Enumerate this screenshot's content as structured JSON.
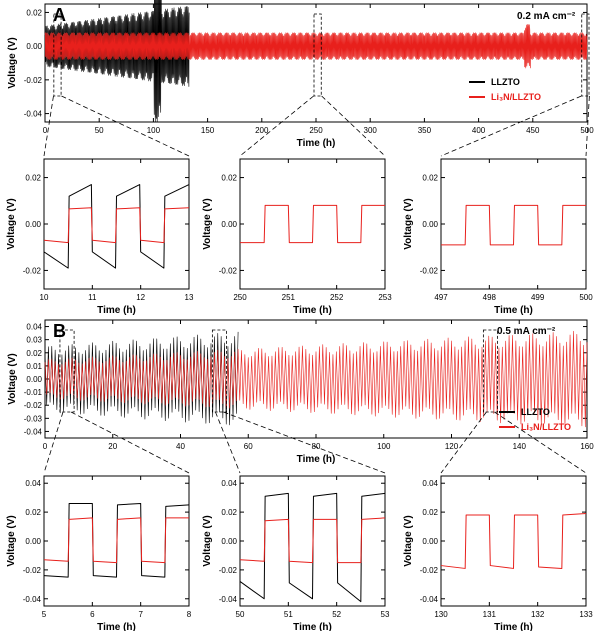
{
  "chart_data": [
    {
      "id": "A-main",
      "type": "line",
      "panel_label": "A",
      "condition": "0.2 mA cm⁻²",
      "xlabel": "Time (h)",
      "ylabel": "Voltage (V)",
      "xlim": [
        0,
        500
      ],
      "ylim": [
        -0.045,
        0.025
      ],
      "xticks": [
        0,
        50,
        100,
        150,
        200,
        250,
        300,
        350,
        400,
        450,
        500
      ],
      "yticks": [
        -0.04,
        -0.02,
        0.0,
        0.02
      ],
      "ytick_labels": [
        "-0.04",
        "-0.02",
        "0.00",
        "0.02"
      ],
      "legend": [
        "LLZTO",
        "Li₃N/LLZTO"
      ],
      "legend_position": "right",
      "zoom_windows": [
        [
          10,
          13
        ],
        [
          250,
          253
        ],
        [
          497,
          500
        ]
      ],
      "series": [
        {
          "name": "LLZTO",
          "color": "#000000",
          "x_range": [
            0,
            133
          ],
          "amplitude_start": 0.012,
          "amplitude_end": 0.024,
          "failure_spike_x": 104,
          "failure_spike_amplitude": 0.045
        },
        {
          "name": "Li₃N/LLZTO",
          "color": "#e8201c",
          "x_range": [
            0,
            500
          ],
          "amplitude_start": 0.008,
          "amplitude_end": 0.008,
          "bump_x": 445,
          "bump_amplitude": 0.013
        }
      ]
    },
    {
      "id": "A-zoom-1",
      "type": "line",
      "xlabel": "Time (h)",
      "ylabel": "Voltage (V)",
      "xlim": [
        10,
        13
      ],
      "ylim": [
        -0.028,
        0.028
      ],
      "xticks": [
        10,
        11,
        12,
        13
      ],
      "yticks": [
        -0.02,
        0.0,
        0.02
      ],
      "ytick_labels": [
        "-0.02",
        "0.00",
        "0.02"
      ],
      "series": [
        {
          "name": "LLZTO",
          "color": "#000000",
          "x": [
            10,
            10.5,
            10.52,
            10.98,
            11.0,
            11.48,
            11.5,
            11.98,
            12.0,
            12.48,
            12.5,
            13
          ],
          "y": [
            -0.012,
            -0.019,
            0.012,
            0.017,
            -0.012,
            -0.019,
            0.012,
            0.017,
            -0.012,
            -0.019,
            0.012,
            0.017
          ]
        },
        {
          "name": "Li₃N/LLZTO",
          "color": "#e8201c",
          "x": [
            10,
            10.5,
            10.52,
            10.98,
            11.0,
            11.48,
            11.5,
            11.98,
            12.0,
            12.48,
            12.5,
            13
          ],
          "y": [
            -0.007,
            -0.008,
            0.0065,
            0.007,
            -0.007,
            -0.008,
            0.0065,
            0.007,
            -0.007,
            -0.008,
            0.0065,
            0.007
          ]
        }
      ]
    },
    {
      "id": "A-zoom-2",
      "type": "line",
      "xlabel": "Time (h)",
      "ylabel": "Voltage (V)",
      "xlim": [
        250,
        253
      ],
      "ylim": [
        -0.028,
        0.028
      ],
      "xticks": [
        250,
        251,
        252,
        253
      ],
      "yticks": [
        -0.02,
        0.0,
        0.02
      ],
      "ytick_labels": [
        "-0.02",
        "0.00",
        "0.02"
      ],
      "series": [
        {
          "name": "Li₃N/LLZTO",
          "color": "#e8201c",
          "x": [
            250,
            250.5,
            250.52,
            251.0,
            251.02,
            251.5,
            251.52,
            252.0,
            252.02,
            252.5,
            252.52,
            253
          ],
          "y": [
            -0.008,
            -0.008,
            0.008,
            0.008,
            -0.008,
            -0.008,
            0.008,
            0.008,
            -0.008,
            -0.008,
            0.008,
            0.008
          ]
        }
      ]
    },
    {
      "id": "A-zoom-3",
      "type": "line",
      "xlabel": "Time (h)",
      "ylabel": "Voltage (V)",
      "xlim": [
        497,
        500
      ],
      "ylim": [
        -0.028,
        0.028
      ],
      "xticks": [
        497,
        498,
        499,
        500
      ],
      "yticks": [
        -0.02,
        0.0,
        0.02
      ],
      "ytick_labels": [
        "-0.02",
        "0.00",
        "0.02"
      ],
      "series": [
        {
          "name": "Li₃N/LLZTO",
          "color": "#e8201c",
          "x": [
            497,
            497.5,
            497.52,
            498.0,
            498.02,
            498.5,
            498.52,
            499.0,
            499.02,
            499.5,
            499.52,
            500
          ],
          "y": [
            -0.009,
            -0.009,
            0.008,
            0.008,
            -0.009,
            -0.009,
            0.008,
            0.008,
            -0.009,
            -0.009,
            0.008,
            0.008
          ]
        }
      ]
    },
    {
      "id": "B-main",
      "type": "line",
      "panel_label": "B",
      "condition": "0.5 mA cm⁻²",
      "xlabel": "Time (h)",
      "ylabel": "Voltage (V)",
      "xlim": [
        0,
        160
      ],
      "ylim": [
        -0.045,
        0.045
      ],
      "xticks": [
        0,
        20,
        40,
        60,
        80,
        100,
        120,
        140,
        160
      ],
      "yticks": [
        -0.04,
        -0.03,
        -0.02,
        -0.01,
        0.0,
        0.01,
        0.02,
        0.03,
        0.04
      ],
      "ytick_labels": [
        "-0.04",
        "-0.03",
        "-0.02",
        "-0.01",
        "0.00",
        "0.01",
        "0.02",
        "0.03",
        "0.04"
      ],
      "legend": [
        "LLZTO",
        "Li₃N/LLZTO"
      ],
      "legend_position": "right",
      "zoom_windows": [
        [
          5,
          8
        ],
        [
          50,
          53
        ],
        [
          130,
          133
        ]
      ],
      "series": [
        {
          "name": "LLZTO",
          "color": "#000000",
          "x_range": [
            0,
            57
          ],
          "amplitude_start": 0.025,
          "amplitude_end": 0.036
        },
        {
          "name": "Li₃N/LLZTO",
          "color": "#e8201c",
          "x_range": [
            0,
            160
          ],
          "amplitude_start": 0.015,
          "amplitude_end": 0.037
        }
      ]
    },
    {
      "id": "B-zoom-1",
      "type": "line",
      "xlabel": "Time (h)",
      "ylabel": "Voltage (V)",
      "xlim": [
        5,
        8
      ],
      "ylim": [
        -0.045,
        0.045
      ],
      "xticks": [
        5,
        6,
        7,
        8
      ],
      "yticks": [
        -0.04,
        -0.02,
        0.0,
        0.02,
        0.04
      ],
      "ytick_labels": [
        "-0.04",
        "-0.02",
        "0.00",
        "0.02",
        "0.04"
      ],
      "series": [
        {
          "name": "LLZTO",
          "color": "#000000",
          "x": [
            5,
            5.5,
            5.52,
            6.0,
            6.02,
            6.5,
            6.52,
            7.0,
            7.02,
            7.5,
            7.52,
            8
          ],
          "y": [
            -0.024,
            -0.025,
            0.026,
            0.026,
            -0.024,
            -0.025,
            0.025,
            0.026,
            -0.024,
            -0.025,
            0.024,
            0.025
          ]
        },
        {
          "name": "Li₃N/LLZTO",
          "color": "#e8201c",
          "x": [
            5,
            5.5,
            5.52,
            6.0,
            6.02,
            6.5,
            6.52,
            7.0,
            7.02,
            7.5,
            7.52,
            8
          ],
          "y": [
            -0.013,
            -0.014,
            0.015,
            0.016,
            -0.014,
            -0.015,
            0.015,
            0.016,
            -0.014,
            -0.015,
            0.016,
            0.016
          ]
        }
      ]
    },
    {
      "id": "B-zoom-2",
      "type": "line",
      "xlabel": "Time (h)",
      "ylabel": "Voltage (V)",
      "xlim": [
        50,
        53
      ],
      "ylim": [
        -0.045,
        0.045
      ],
      "xticks": [
        50,
        51,
        52,
        53
      ],
      "yticks": [
        -0.04,
        -0.02,
        0.0,
        0.02,
        0.04
      ],
      "ytick_labels": [
        "-0.04",
        "-0.02",
        "0.00",
        "0.02",
        "0.04"
      ],
      "series": [
        {
          "name": "LLZTO",
          "color": "#000000",
          "x": [
            50,
            50.5,
            50.52,
            51.0,
            51.02,
            51.5,
            51.52,
            52.0,
            52.02,
            52.5,
            52.52,
            53
          ],
          "y": [
            -0.028,
            -0.04,
            0.031,
            0.033,
            -0.029,
            -0.04,
            0.031,
            0.033,
            -0.029,
            -0.042,
            0.031,
            0.033
          ]
        },
        {
          "name": "Li₃N/LLZTO",
          "color": "#e8201c",
          "x": [
            50,
            50.5,
            50.52,
            51.0,
            51.02,
            51.5,
            51.52,
            52.0,
            52.02,
            52.5,
            52.52,
            53
          ],
          "y": [
            -0.013,
            -0.014,
            0.014,
            0.015,
            -0.014,
            -0.015,
            0.015,
            0.015,
            -0.015,
            -0.015,
            0.015,
            0.016
          ]
        }
      ]
    },
    {
      "id": "B-zoom-3",
      "type": "line",
      "xlabel": "Time (h)",
      "ylabel": "Voltage (V)",
      "xlim": [
        130,
        133
      ],
      "ylim": [
        -0.045,
        0.045
      ],
      "xticks": [
        130,
        131,
        132,
        133
      ],
      "yticks": [
        -0.04,
        -0.02,
        0.0,
        0.02,
        0.04
      ],
      "ytick_labels": [
        "-0.04",
        "-0.02",
        "0.00",
        "0.02",
        "0.04"
      ],
      "series": [
        {
          "name": "Li₃N/LLZTO",
          "color": "#e8201c",
          "x": [
            130,
            130.5,
            130.52,
            131.0,
            131.02,
            131.5,
            131.52,
            132.0,
            132.02,
            132.5,
            132.52,
            133
          ],
          "y": [
            -0.017,
            -0.019,
            0.018,
            0.018,
            -0.017,
            -0.019,
            0.018,
            0.018,
            -0.018,
            -0.019,
            0.018,
            0.019
          ]
        }
      ]
    }
  ]
}
